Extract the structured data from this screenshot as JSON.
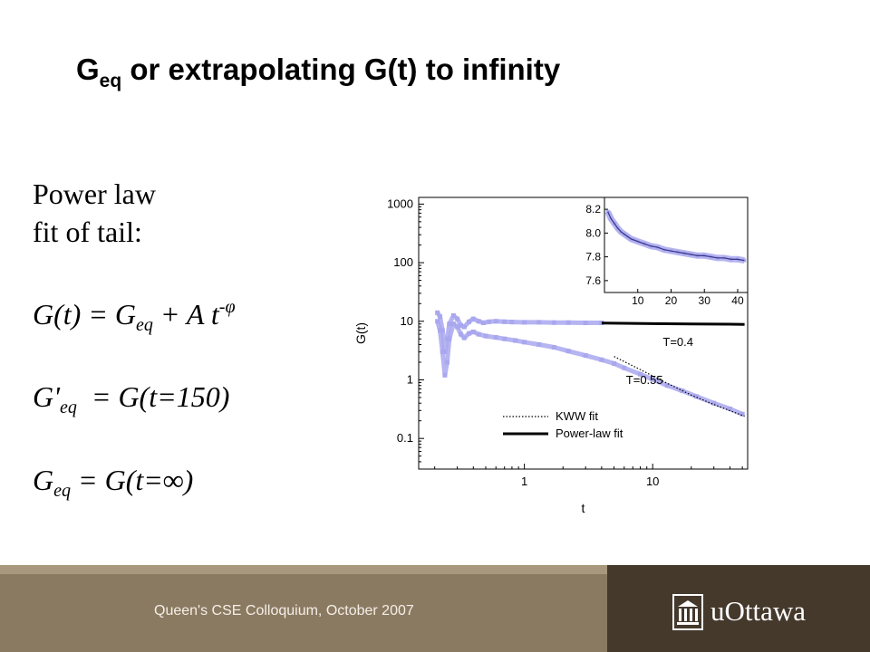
{
  "slide": {
    "title_main": "G",
    "title_sub": "eq",
    "title_rest": " or extrapolating G(t) to infinity",
    "text_line1": "Power law",
    "text_line2": "fit of tail:",
    "eq1": {
      "a": "G(t)",
      "b": " = G",
      "b_sub": "eq",
      "c": " + A t",
      "c_sup": "-φ"
    },
    "eq2": {
      "a": "G'",
      "a_sub": "eq",
      "b": "  = G(t=150)"
    },
    "eq3": {
      "a": "G",
      "a_sub": "eq",
      "b": " = G(t=∞)"
    }
  },
  "footer": {
    "text": "Queen's CSE Colloquium, October 2007",
    "logo_text": "uOttawa",
    "logo_icon": "building-columns-icon",
    "left_color": "#8b7a62",
    "right_color": "#45392c"
  },
  "chart_data": {
    "type": "scatter",
    "xlabel": "t",
    "ylabel": "G(t)",
    "xscale": "log",
    "yscale": "log",
    "xlim": [
      0.15,
      55
    ],
    "ylim": [
      0.03,
      1300
    ],
    "xticks": [
      {
        "value": 1,
        "label": "1"
      },
      {
        "value": 10,
        "label": "10"
      }
    ],
    "yticks": [
      {
        "value": 0.1,
        "label": "0.1"
      },
      {
        "value": 1,
        "label": "1"
      },
      {
        "value": 10,
        "label": "10"
      },
      {
        "value": 100,
        "label": "100"
      },
      {
        "value": 1000,
        "label": "1000"
      }
    ],
    "annotations": [
      {
        "text": "T=0.4",
        "x": 12,
        "y": 3.8
      },
      {
        "text": "T=0.55",
        "x": 6.2,
        "y": 0.85
      }
    ],
    "legend": {
      "position": "bottom-right",
      "entries": [
        {
          "name": "KWW fit",
          "style": "dotted"
        },
        {
          "name": "Power-law fit",
          "style": "solid"
        }
      ]
    },
    "series": [
      {
        "name": "T=0.4",
        "color": "#a9a7ee",
        "points": [
          [
            0.21,
            14
          ],
          [
            0.22,
            12
          ],
          [
            0.23,
            7
          ],
          [
            0.24,
            3
          ],
          [
            0.25,
            5
          ],
          [
            0.26,
            9
          ],
          [
            0.28,
            12.5
          ],
          [
            0.3,
            11
          ],
          [
            0.32,
            8.5
          ],
          [
            0.34,
            8
          ],
          [
            0.37,
            9.8
          ],
          [
            0.4,
            11
          ],
          [
            0.44,
            10
          ],
          [
            0.48,
            9.4
          ],
          [
            0.53,
            9.8
          ],
          [
            0.6,
            10
          ],
          [
            0.7,
            9.8
          ],
          [
            0.8,
            9.7
          ],
          [
            1,
            9.6
          ],
          [
            1.3,
            9.6
          ],
          [
            1.7,
            9.5
          ],
          [
            2.2,
            9.5
          ],
          [
            3,
            9.4
          ],
          [
            4,
            9.4
          ]
        ]
      },
      {
        "name": "T=0.55",
        "color": "#a9a7ee",
        "points": [
          [
            0.21,
            10
          ],
          [
            0.22,
            7
          ],
          [
            0.23,
            3
          ],
          [
            0.24,
            1.2
          ],
          [
            0.25,
            2
          ],
          [
            0.26,
            5
          ],
          [
            0.28,
            9
          ],
          [
            0.3,
            8
          ],
          [
            0.32,
            6
          ],
          [
            0.34,
            5.2
          ],
          [
            0.37,
            6.2
          ],
          [
            0.4,
            6.6
          ],
          [
            0.44,
            6
          ],
          [
            0.5,
            5.6
          ],
          [
            0.6,
            5.3
          ],
          [
            0.7,
            5
          ],
          [
            0.85,
            4.7
          ],
          [
            1,
            4.4
          ],
          [
            1.3,
            4
          ],
          [
            1.7,
            3.6
          ],
          [
            2.2,
            3.1
          ],
          [
            3,
            2.6
          ],
          [
            4,
            2.2
          ],
          [
            5,
            1.9
          ],
          [
            6,
            1.6
          ],
          [
            8,
            1.25
          ],
          [
            10,
            1.02
          ],
          [
            13,
            0.8
          ],
          [
            17,
            0.65
          ],
          [
            22,
            0.52
          ],
          [
            30,
            0.4
          ],
          [
            40,
            0.32
          ],
          [
            50,
            0.26
          ]
        ]
      },
      {
        "name": "KWW fit",
        "style": "dotted",
        "color": "#000000",
        "points": [
          [
            5,
            2.5
          ],
          [
            8,
            1.5
          ],
          [
            12,
            0.95
          ],
          [
            20,
            0.55
          ],
          [
            30,
            0.38
          ],
          [
            45,
            0.27
          ],
          [
            52,
            0.24
          ]
        ]
      },
      {
        "name": "Power-law fit",
        "style": "solid",
        "color": "#000000",
        "points": [
          [
            4,
            9.3
          ],
          [
            10,
            9.1
          ],
          [
            20,
            9.0
          ],
          [
            40,
            8.9
          ],
          [
            52,
            8.85
          ]
        ]
      }
    ],
    "inset": {
      "type": "scatter",
      "xlim": [
        0,
        43
      ],
      "ylim": [
        7.5,
        8.3
      ],
      "xticks": [
        10,
        20,
        30,
        40
      ],
      "yticks": [
        7.6,
        7.8,
        8.0,
        8.2
      ],
      "data_color": "#a9a7ee",
      "fit_color": "#3b3b8c",
      "points": [
        [
          1,
          8.18
        ],
        [
          2,
          8.12
        ],
        [
          3,
          8.08
        ],
        [
          4,
          8.04
        ],
        [
          5,
          8.01
        ],
        [
          6,
          7.99
        ],
        [
          7,
          7.97
        ],
        [
          8,
          7.95
        ],
        [
          9,
          7.94
        ],
        [
          10,
          7.93
        ],
        [
          12,
          7.91
        ],
        [
          14,
          7.89
        ],
        [
          16,
          7.88
        ],
        [
          18,
          7.86
        ],
        [
          20,
          7.85
        ],
        [
          22,
          7.84
        ],
        [
          24,
          7.83
        ],
        [
          26,
          7.82
        ],
        [
          28,
          7.81
        ],
        [
          30,
          7.81
        ],
        [
          32,
          7.8
        ],
        [
          34,
          7.79
        ],
        [
          36,
          7.79
        ],
        [
          38,
          7.78
        ],
        [
          40,
          7.78
        ],
        [
          42,
          7.77
        ]
      ]
    }
  }
}
